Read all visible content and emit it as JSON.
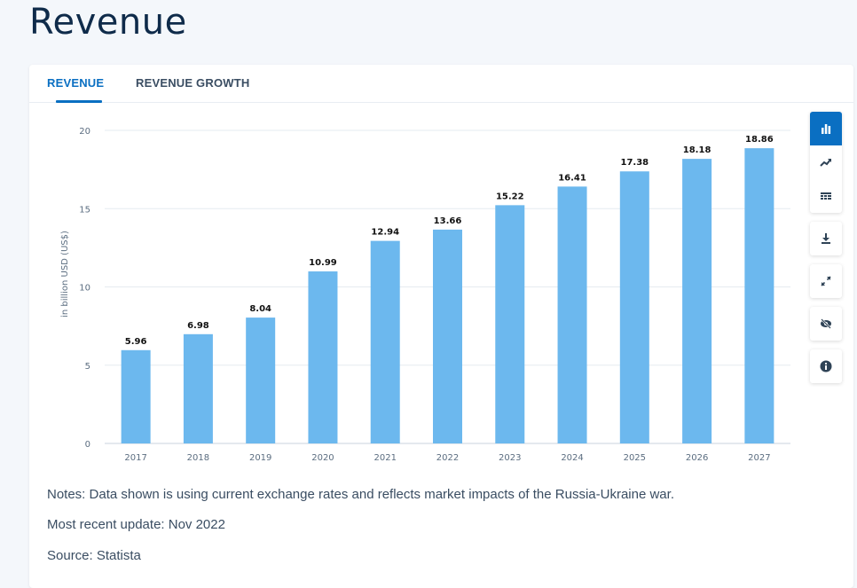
{
  "page": {
    "title": "Revenue"
  },
  "tabs": [
    {
      "label": "REVENUE",
      "active": true
    },
    {
      "label": "REVENUE GROWTH",
      "active": false
    }
  ],
  "toolbar": {
    "icons": [
      "bar-chart-icon",
      "trend-line-icon",
      "table-grid-icon",
      "download-icon",
      "expand-icon",
      "hide-icon",
      "info-icon"
    ],
    "accent": "#0a6fc2"
  },
  "chart_data": {
    "type": "bar",
    "categories": [
      "2017",
      "2018",
      "2019",
      "2020",
      "2021",
      "2022",
      "2023",
      "2024",
      "2025",
      "2026",
      "2027"
    ],
    "values": [
      5.96,
      6.98,
      8.04,
      10.99,
      12.94,
      13.66,
      15.22,
      16.41,
      17.38,
      18.18,
      18.86
    ],
    "value_labels": [
      "5.96",
      "6.98",
      "8.04",
      "10.99",
      "12.94",
      "13.66",
      "15.22",
      "16.41",
      "17.38",
      "18.18",
      "18.86"
    ],
    "ylabel": "in billion USD (US$)",
    "yticks": [
      "0",
      "5",
      "10",
      "15",
      "20"
    ],
    "ylim": [
      0,
      20
    ],
    "grid": true,
    "bar_color": "#6cb8ee"
  },
  "notes": {
    "line1": "Notes: Data shown is using current exchange rates and reflects market impacts of the Russia-Ukraine war.",
    "line2": "Most recent update: Nov 2022",
    "line3": "Source: Statista"
  }
}
